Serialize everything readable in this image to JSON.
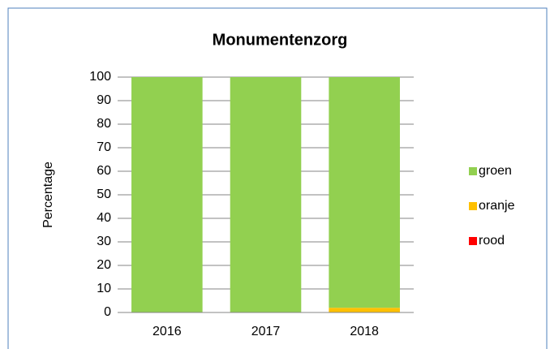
{
  "chart_data": {
    "type": "stacked_bar",
    "title": "Monumentenzorg",
    "y_label": "Percentage",
    "categories": [
      "2016",
      "2017",
      "2018"
    ],
    "series": [
      {
        "name": "groen",
        "color": "#92d050",
        "values": [
          100,
          100,
          98
        ]
      },
      {
        "name": "oranje",
        "color": "#ffc000",
        "values": [
          0,
          0,
          2
        ]
      },
      {
        "name": "rood",
        "color": "#ff0000",
        "values": [
          0,
          0,
          0
        ]
      }
    ],
    "ylim": [
      0,
      100
    ],
    "yticks": [
      0,
      10,
      20,
      30,
      40,
      50,
      60,
      70,
      80,
      90,
      100
    ],
    "grid": true,
    "legend": "right"
  }
}
